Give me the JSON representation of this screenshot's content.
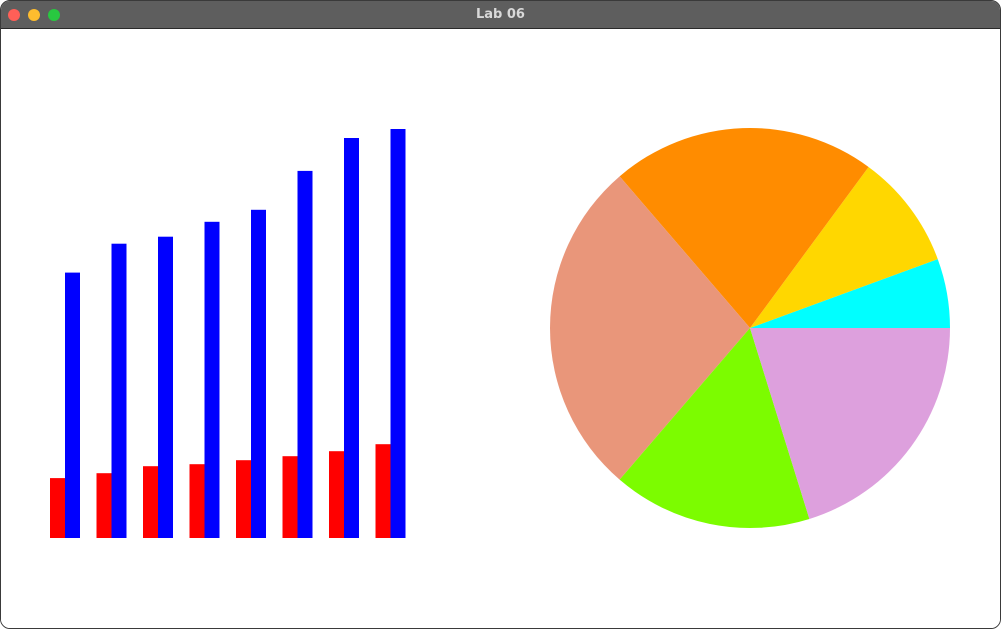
{
  "window": {
    "title": "Lab 06",
    "controls": {
      "close_color": "#ff5f57",
      "minimize_color": "#febc2e",
      "zoom_color": "#28c840"
    }
  },
  "chart_data": [
    {
      "type": "bar",
      "title": "",
      "xlabel": "",
      "ylabel": "",
      "categories": [
        "",
        "",
        "",
        "",
        "",
        "",
        "",
        ""
      ],
      "ylim": [
        0,
        410
      ],
      "grid": false,
      "legend": "none",
      "series": [
        {
          "color": "#ff0000",
          "values": [
            60,
            65,
            72,
            74,
            78,
            82,
            87,
            94
          ]
        },
        {
          "color": "#0000ff",
          "values": [
            266,
            295,
            302,
            317,
            329,
            368,
            401,
            410
          ]
        }
      ]
    },
    {
      "type": "pie",
      "title": "",
      "legend": "none",
      "start_angle_deg": 0,
      "direction": "counterclockwise",
      "slices": [
        {
          "value": 5.6,
          "color": "#00ffff"
        },
        {
          "value": 9.3,
          "color": "#ffd700"
        },
        {
          "value": 21.4,
          "color": "#ff8c00"
        },
        {
          "value": 27.4,
          "color": "#e9967a"
        },
        {
          "value": 16.1,
          "color": "#7cfc00"
        },
        {
          "value": 20.2,
          "color": "#dda0dd"
        }
      ]
    }
  ]
}
